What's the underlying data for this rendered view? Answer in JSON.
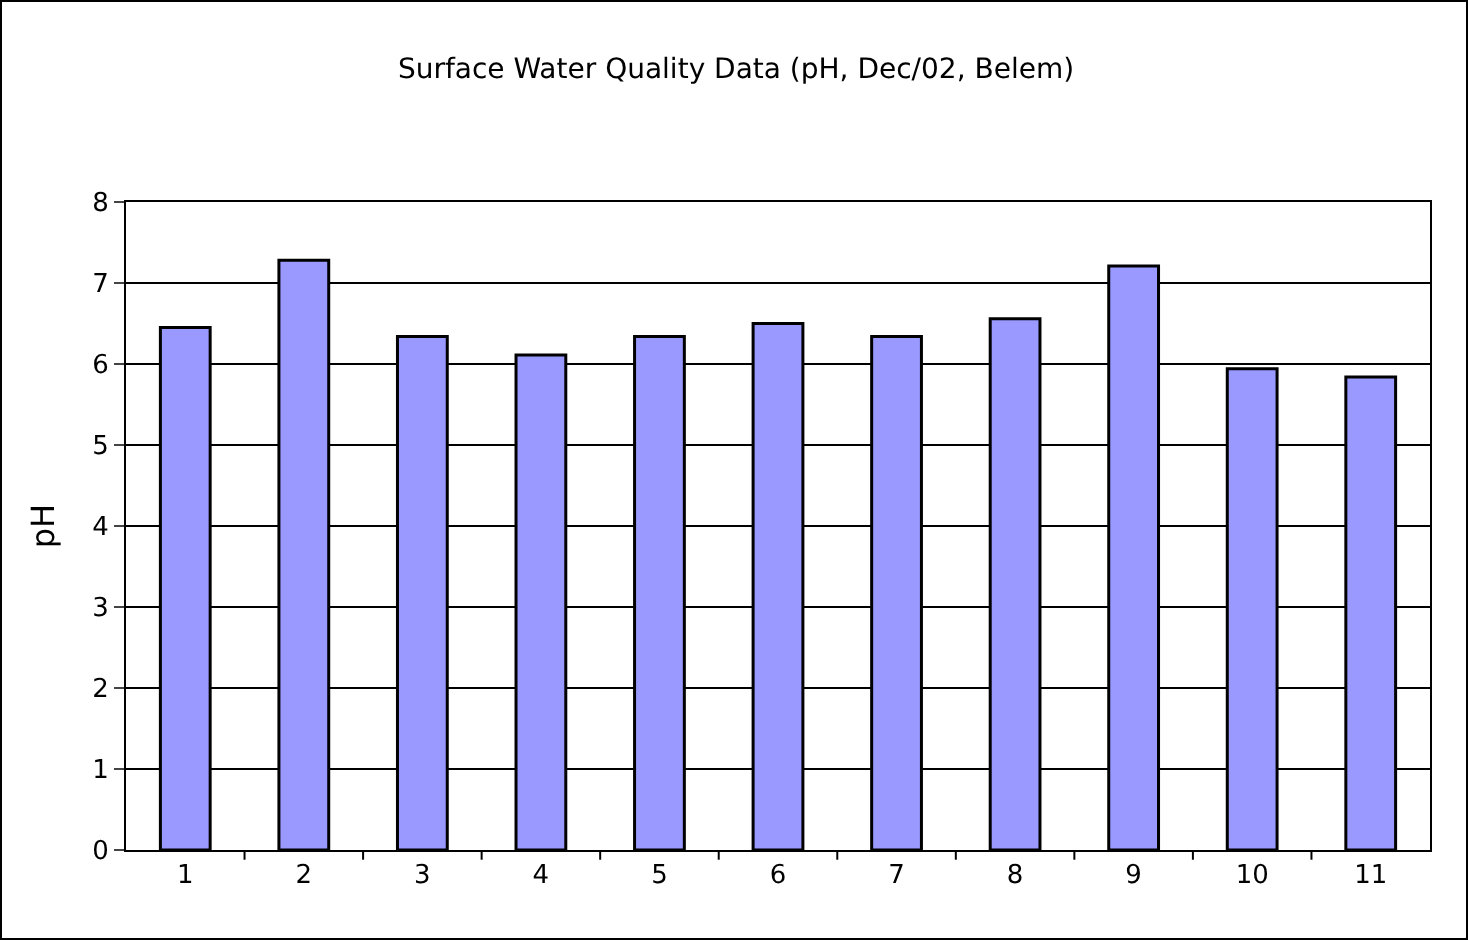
{
  "chart_data": {
    "type": "bar",
    "title": "Surface Water Quality Data (pH, Dec/02, Belem)",
    "ylabel": "pH",
    "categories": [
      "1",
      "2",
      "3",
      "4",
      "5",
      "6",
      "7",
      "8",
      "9",
      "10",
      "11"
    ],
    "values": [
      6.45,
      7.28,
      6.34,
      6.11,
      6.34,
      6.5,
      6.34,
      6.56,
      7.21,
      5.94,
      5.84
    ],
    "color": "#9999ff",
    "ylim": [
      0,
      8
    ],
    "yticks": [
      0,
      1,
      2,
      3,
      4,
      5,
      6,
      7,
      8
    ],
    "grid": "y",
    "legend": false
  }
}
